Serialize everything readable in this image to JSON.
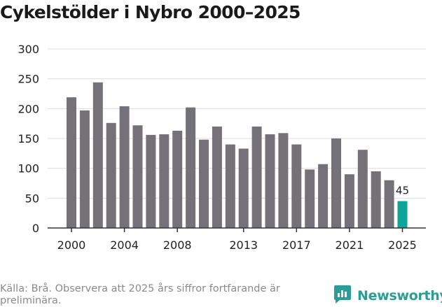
{
  "title": "Cykelstölder i Nybro 2000–2025",
  "source_note": "Källa: Brå. Observera att 2025 års siffror fortfarande är preliminära.",
  "brand": {
    "name": "Newsworthy",
    "icon": "newsworthy-logo-icon"
  },
  "colors": {
    "bar": "#747278",
    "highlight": "#0fa39a",
    "grid": "#dddddd",
    "axis": "#333333",
    "text": "#222222"
  },
  "chart_data": {
    "type": "bar",
    "title": "Cykelstölder i Nybro 2000–2025",
    "xlabel": "",
    "ylabel": "",
    "categories": [
      "2000",
      "2001",
      "2002",
      "2003",
      "2004",
      "2005",
      "2006",
      "2007",
      "2008",
      "2009",
      "2010",
      "2011",
      "2012",
      "2013",
      "2014",
      "2015",
      "2016",
      "2017",
      "2018",
      "2019",
      "2020",
      "2021",
      "2022",
      "2023",
      "2024",
      "2025"
    ],
    "values": [
      219,
      197,
      244,
      176,
      204,
      172,
      156,
      157,
      163,
      202,
      148,
      170,
      140,
      133,
      170,
      157,
      159,
      140,
      98,
      107,
      150,
      90,
      131,
      95,
      80,
      45
    ],
    "highlight_index": 25,
    "highlight_label": "45",
    "x_ticks": [
      "2000",
      "2004",
      "2008",
      "2013",
      "2017",
      "2021",
      "2025"
    ],
    "y_ticks": [
      "0",
      "50",
      "100",
      "150",
      "200",
      "250",
      "300"
    ],
    "ylim": [
      0,
      300
    ],
    "grid": true
  }
}
